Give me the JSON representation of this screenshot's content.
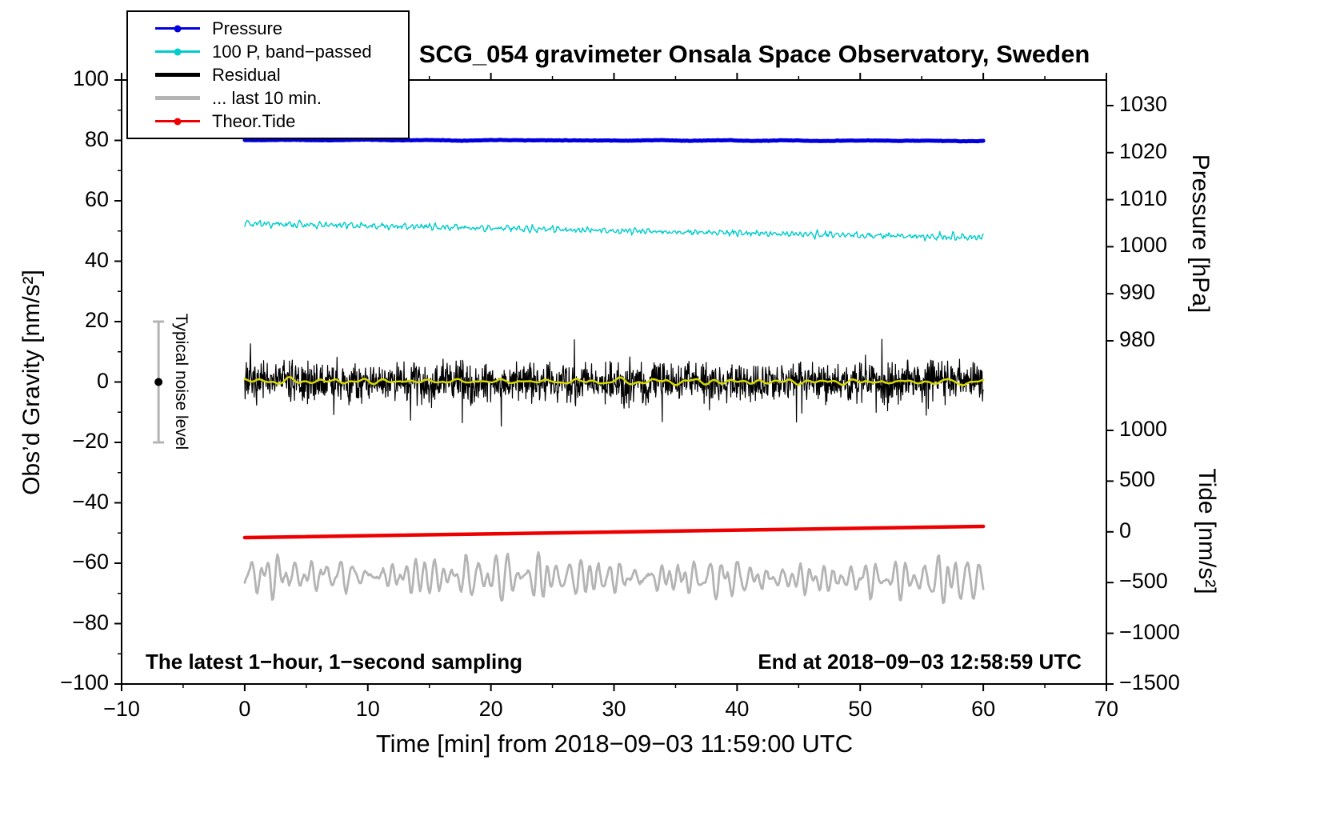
{
  "chart_data": {
    "type": "line",
    "title": "SCG_054 gravimeter Onsala Space Observatory, Sweden",
    "xlabel": "Time [min] from 2018−09−03 11:59:00 UTC",
    "x_range": [
      -10,
      70
    ],
    "x_ticks": [
      -10,
      0,
      10,
      20,
      30,
      40,
      50,
      60,
      70
    ],
    "x_minor_step": 5,
    "axes": {
      "gravity": {
        "label": "Obs’d Gravity [nm/s²]",
        "side": "left",
        "range": [
          -100,
          100
        ],
        "ticks": [
          100,
          80,
          60,
          40,
          20,
          0,
          -20,
          -40,
          -60,
          -80,
          -100
        ],
        "minor_step": 10
      },
      "pressure": {
        "label": "Pressure [hPa]",
        "side": "right",
        "ticks": [
          1030,
          1020,
          1010,
          1000,
          990,
          980
        ]
      },
      "tide": {
        "label": "Tide [nm/s²]",
        "side": "right",
        "ticks": [
          1000,
          500,
          0,
          -500,
          -1000,
          -1500
        ]
      }
    },
    "legend": {
      "items": [
        {
          "label": "Pressure",
          "color": "#0000dd",
          "marker": "dot-line"
        },
        {
          "label": "100 P, band−passed",
          "color": "#00cccc",
          "marker": "dot-line"
        },
        {
          "label": "Residual",
          "color": "#000000",
          "marker": "thick-line"
        },
        {
          "label": "... last 10 min.",
          "color": "#b4b4b4",
          "marker": "thick-line"
        },
        {
          "label": "Theor.Tide",
          "color": "#ee0000",
          "marker": "dot-line"
        }
      ]
    },
    "annotations": {
      "bottom_left": "The latest 1−hour, 1−second sampling",
      "bottom_right": "End at 2018−09−03 12:58:59 UTC"
    },
    "noise_bar": {
      "x": -7,
      "center": 0,
      "half_range": 20,
      "label": "Typical noise level"
    },
    "series": [
      {
        "id": "pressure",
        "name": "Pressure",
        "axis": "pressure",
        "color": "#0000dd",
        "width": 5,
        "x_start": 0,
        "x_end": 60,
        "points": 400,
        "base_start": 1022.7,
        "base_end": 1022.5,
        "amp_smooth": 0.06,
        "amp_jitter": 0.05,
        "waves": 6,
        "freq_min": 3,
        "freq_max": 20,
        "seed": 11
      },
      {
        "id": "band-passed-pressure",
        "name": "100 P, band−passed",
        "axis": "gravity",
        "color": "#00cccc",
        "width": 1.4,
        "x_start": 0,
        "x_end": 60,
        "points": 900,
        "base_start": 52.5,
        "base_end": 47.8,
        "amp_smooth": 1.1,
        "amp_jitter": 0.6,
        "waves": 12,
        "freq_min": 60,
        "freq_max": 180,
        "seed": 23
      },
      {
        "id": "residual-last-10-min",
        "name": "... last 10 min.",
        "axis": "gravity",
        "color": "#b4b4b4",
        "width": 2.8,
        "x_start": 0,
        "x_end": 60,
        "points": 700,
        "base_start": -64.0,
        "base_end": -65.5,
        "amp_smooth": 6.5,
        "amp_jitter": 0.5,
        "waves": 10,
        "freq_min": 35,
        "freq_max": 110,
        "spike_prob": 0.004,
        "spike_amp": 7,
        "seed": 37
      },
      {
        "id": "theor-tide",
        "name": "Theor.Tide",
        "axis": "tide",
        "color": "#ee0000",
        "width": 4.5,
        "keypoints": [
          [
            0,
            -57
          ],
          [
            60,
            54
          ]
        ]
      },
      {
        "id": "residual",
        "name": "Residual",
        "axis": "gravity",
        "color": "#000000",
        "width": 1.2,
        "x_start": 0,
        "x_end": 60,
        "points": 1800,
        "base_start": 0,
        "base_end": 0,
        "amp_smooth": 1.0,
        "amp_jitter": 6.5,
        "waves": 6,
        "freq_min": 5,
        "freq_max": 40,
        "spike_prob": 0.012,
        "spike_amp": 9,
        "seed": 7
      },
      {
        "id": "residual-smoothed",
        "name": "Residual (smoothed)",
        "axis": "gravity",
        "color": "#d6d600",
        "width": 2.5,
        "x_start": 0,
        "x_end": 60,
        "points": 400,
        "base_start": 0.3,
        "base_end": 0,
        "amp_smooth": 0.9,
        "amp_jitter": 0.1,
        "waves": 8,
        "freq_min": 15,
        "freq_max": 50,
        "seed": 51
      }
    ]
  }
}
